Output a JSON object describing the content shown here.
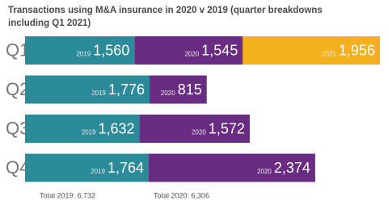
{
  "chart_data": {
    "type": "stacked-bar-horizontal",
    "title": "Transactions using M&A insurance in 2020 v 2019 (quarter breakdowns including Q1 2021)",
    "categories": [
      "Q1",
      "Q2",
      "Q3",
      "Q4"
    ],
    "series": [
      {
        "name": "2019",
        "color": "#2b8b9b",
        "values": [
          1560,
          1776,
          1632,
          1764
        ],
        "value_labels": [
          "1,560",
          "1,776",
          "1,632",
          "1,764"
        ]
      },
      {
        "name": "2020",
        "color": "#6a2c82",
        "values": [
          1545,
          815,
          1572,
          2374
        ],
        "value_labels": [
          "1,545",
          "815",
          "1,572",
          "2,374"
        ]
      },
      {
        "name": "2021",
        "color": "#f4b01d",
        "values": [
          1956,
          null,
          null,
          null
        ],
        "value_labels": [
          "1,956",
          null,
          null,
          null
        ]
      }
    ],
    "annotations": [
      "Total 2019: 6,732",
      "Total 2020: 6,306"
    ]
  }
}
